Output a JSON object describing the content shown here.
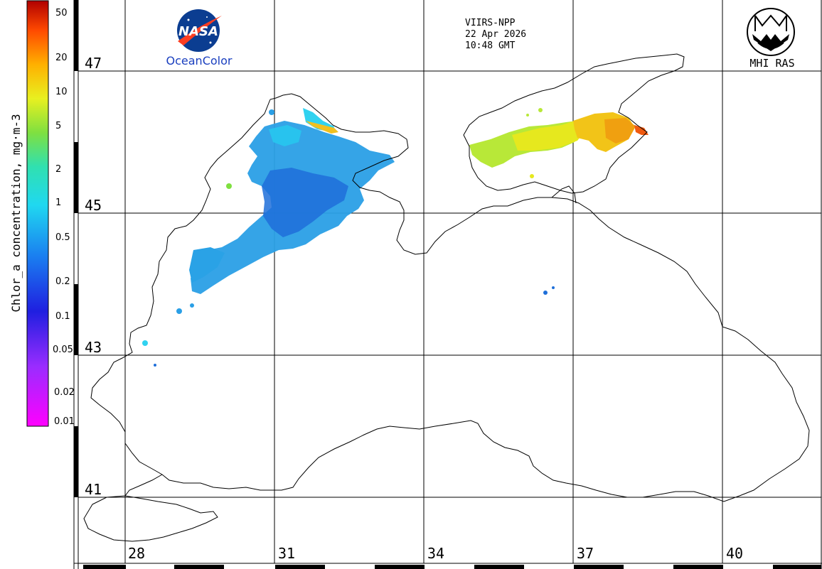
{
  "colorbar": {
    "title": "Chlor_a concentration, mg·m-3",
    "ticks": [
      "50",
      "20",
      "10",
      "5",
      "2",
      "1",
      "0.5",
      "0.2",
      "0.1",
      "0.05",
      "0.02",
      "0.01"
    ]
  },
  "header": {
    "sensor": "VIIRS-NPP",
    "date": "22 Apr 2026",
    "time": "10:48 GMT",
    "nasa_logo_text": "NASA",
    "nasa_label": "OceanColor",
    "mhi_label": "MHI RAS"
  },
  "lat_labels": [
    "47",
    "45",
    "43",
    "41"
  ],
  "lon_labels": [
    "28",
    "31",
    "34",
    "37",
    "40"
  ],
  "colors": {
    "nasa_blue": "#0b3d91",
    "nasa_red": "#fc3d21",
    "ocean_color_text": "#1a3fbf"
  }
}
